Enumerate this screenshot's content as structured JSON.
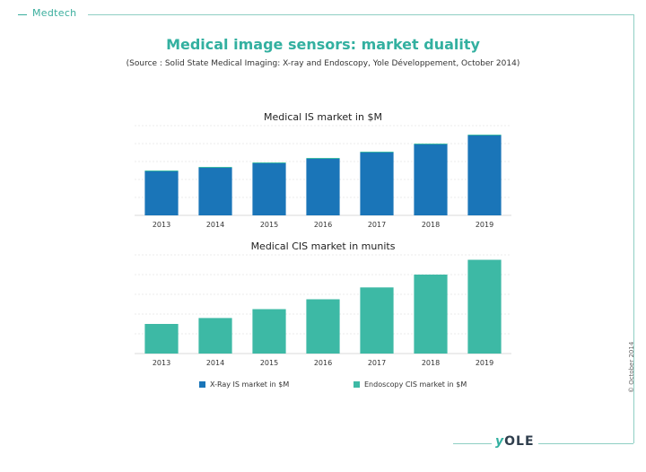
{
  "header": {
    "section_tag": "Medtech",
    "title": "Medical image sensors: market duality",
    "source": "(Source : Solid State Medical Imaging: X-ray and Endoscopy, Yole Développement, October 2014)"
  },
  "colors": {
    "xray": "#1a75b8",
    "endoscopy": "#3db9a5",
    "accent": "#33b0a0",
    "grid": "#d8d8d8"
  },
  "chart_data": [
    {
      "type": "bar",
      "title": "Medical IS market in $M",
      "categories": [
        "2013",
        "2014",
        "2015",
        "2016",
        "2017",
        "2018",
        "2019"
      ],
      "series": [
        {
          "name": "X-Ray IS market in $M",
          "values": [
            49,
            53,
            58,
            63,
            70,
            79,
            89
          ]
        },
        {
          "name": "Endoscopy CIS market in $M",
          "values": [
            1,
            1,
            1,
            1,
            1,
            1,
            1
          ]
        }
      ],
      "stacked": true,
      "ylim": [
        0,
        100
      ],
      "grid": true
    },
    {
      "type": "bar",
      "title": "Medical CIS market in munits",
      "categories": [
        "2013",
        "2014",
        "2015",
        "2016",
        "2017",
        "2018",
        "2019"
      ],
      "series": [
        {
          "name": "Endoscopy CIS market in $M",
          "values": [
            30,
            36,
            45,
            55,
            67,
            80,
            95
          ]
        }
      ],
      "ylim": [
        0,
        100
      ],
      "grid": true
    }
  ],
  "legend": {
    "xray_label": "X-Ray IS market in $M",
    "endo_label": "Endoscopy CIS market in $M"
  },
  "footer": {
    "copyright": "© October 2014",
    "logo_prefix": "y",
    "logo_rest": "OLE"
  }
}
